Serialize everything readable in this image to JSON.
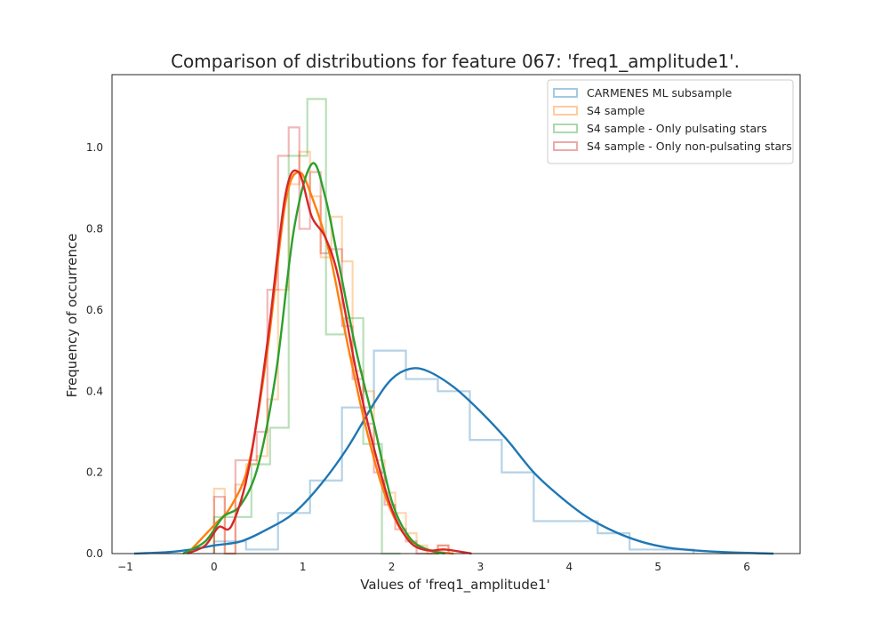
{
  "chart_data": {
    "type": "histogram+kde",
    "title": "Comparison of distributions for feature 067: 'freq1_amplitude1'.",
    "xlabel": "Values of 'freq1_amplitude1'",
    "ylabel": "Frequency of occurrence",
    "xlim": [
      -1.15,
      6.6
    ],
    "ylim": [
      0,
      1.18
    ],
    "xticks": [
      -1,
      0,
      1,
      2,
      3,
      4,
      5,
      6
    ],
    "xtick_labels": [
      "−1",
      "0",
      "1",
      "2",
      "3",
      "4",
      "5",
      "6"
    ],
    "yticks": [
      0.0,
      0.2,
      0.4,
      0.6,
      0.8,
      1.0
    ],
    "ytick_labels": [
      "0.0",
      "0.2",
      "0.4",
      "0.6",
      "0.8",
      "1.0"
    ],
    "grid": false,
    "legend_position": "top-right",
    "series": [
      {
        "name": "CARMENES ML subsample",
        "color": "#1f77b4",
        "hist": {
          "edges": [
            0.0,
            0.36,
            0.72,
            1.08,
            1.44,
            1.8,
            2.16,
            2.52,
            2.88,
            3.24,
            3.6,
            3.96,
            4.32,
            4.68,
            5.04,
            5.4
          ],
          "values": [
            0.03,
            0.01,
            0.1,
            0.18,
            0.36,
            0.5,
            0.43,
            0.4,
            0.28,
            0.2,
            0.08,
            0.08,
            0.05,
            0.01,
            0.01
          ]
        },
        "kde": {
          "x": [
            -0.9,
            -0.5,
            -0.2,
            0.0,
            0.3,
            0.6,
            0.9,
            1.2,
            1.5,
            1.8,
            2.0,
            2.2,
            2.4,
            2.7,
            3.0,
            3.3,
            3.6,
            3.9,
            4.2,
            4.5,
            4.8,
            5.1,
            5.4,
            5.8,
            6.3
          ],
          "y": [
            0.0,
            0.004,
            0.012,
            0.02,
            0.03,
            0.06,
            0.1,
            0.17,
            0.26,
            0.37,
            0.43,
            0.455,
            0.45,
            0.41,
            0.35,
            0.28,
            0.2,
            0.14,
            0.09,
            0.055,
            0.03,
            0.015,
            0.008,
            0.003,
            0.0
          ]
        }
      },
      {
        "name": "S4 sample",
        "color": "#ff7f0e",
        "hist": {
          "edges": [
            0.0,
            0.12,
            0.24,
            0.36,
            0.48,
            0.6,
            0.72,
            0.84,
            0.96,
            1.08,
            1.2,
            1.32,
            1.44,
            1.56,
            1.68,
            1.8,
            1.92,
            2.04,
            2.16,
            2.28,
            2.4,
            2.52,
            2.64
          ],
          "values": [
            0.16,
            0.0,
            0.17,
            0.22,
            0.24,
            0.38,
            0.65,
            0.91,
            0.99,
            0.88,
            0.73,
            0.83,
            0.72,
            0.45,
            0.4,
            0.23,
            0.15,
            0.1,
            0.05,
            0.02,
            0.0,
            0.02
          ]
        },
        "kde": {
          "x": [
            -0.3,
            0.0,
            0.2,
            0.4,
            0.6,
            0.8,
            0.95,
            1.1,
            1.3,
            1.5,
            1.7,
            1.9,
            2.1,
            2.3,
            2.5,
            2.7
          ],
          "y": [
            0.0,
            0.07,
            0.12,
            0.23,
            0.5,
            0.86,
            0.94,
            0.88,
            0.74,
            0.52,
            0.32,
            0.16,
            0.06,
            0.02,
            0.005,
            0.0
          ]
        }
      },
      {
        "name": "S4 sample - Only pulsating stars",
        "color": "#2ca02c",
        "hist": {
          "edges": [
            0.0,
            0.42,
            0.63,
            0.84,
            1.05,
            1.26,
            1.47,
            1.68,
            1.89,
            2.1
          ],
          "values": [
            0.09,
            0.22,
            0.31,
            0.98,
            1.12,
            0.54,
            0.58,
            0.27,
            0.0
          ]
        },
        "kde": {
          "x": [
            -0.35,
            -0.1,
            0.1,
            0.3,
            0.5,
            0.7,
            0.9,
            1.1,
            1.25,
            1.4,
            1.6,
            1.8,
            2.0,
            2.2,
            2.4,
            2.6
          ],
          "y": [
            0.0,
            0.03,
            0.09,
            0.12,
            0.22,
            0.45,
            0.8,
            0.96,
            0.88,
            0.72,
            0.5,
            0.32,
            0.13,
            0.04,
            0.01,
            0.0
          ]
        }
      },
      {
        "name": "S4 sample - Only non-pulsating stars",
        "color": "#d62728",
        "hist": {
          "edges": [
            0.0,
            0.12,
            0.24,
            0.36,
            0.48,
            0.6,
            0.72,
            0.84,
            0.96,
            1.08,
            1.2,
            1.32,
            1.44,
            1.56,
            1.68,
            1.8,
            1.92,
            2.04,
            2.16,
            2.28,
            2.4,
            2.52,
            2.64
          ],
          "values": [
            0.14,
            0.0,
            0.23,
            0.23,
            0.3,
            0.65,
            0.98,
            1.05,
            0.8,
            0.94,
            0.74,
            0.75,
            0.56,
            0.43,
            0.32,
            0.2,
            0.12,
            0.06,
            0.03,
            0.0,
            0.0,
            0.02
          ]
        },
        "kde": {
          "x": [
            -0.3,
            -0.1,
            0.05,
            0.2,
            0.4,
            0.6,
            0.8,
            0.95,
            1.1,
            1.25,
            1.4,
            1.6,
            1.8,
            2.0,
            2.2,
            2.4,
            2.6,
            2.9
          ],
          "y": [
            0.0,
            0.02,
            0.065,
            0.07,
            0.22,
            0.52,
            0.88,
            0.94,
            0.83,
            0.78,
            0.68,
            0.45,
            0.26,
            0.11,
            0.03,
            0.008,
            0.01,
            0.0
          ]
        }
      }
    ]
  }
}
